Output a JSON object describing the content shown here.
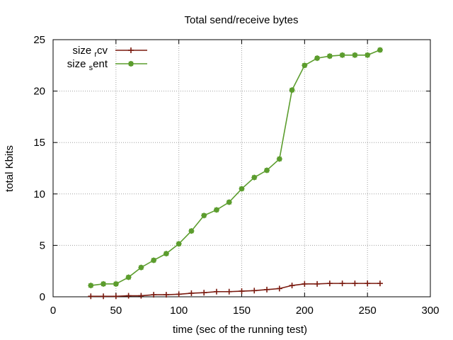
{
  "chart_data": {
    "type": "line",
    "title": "Total send/receive bytes",
    "xlabel": "time (sec of the running test)",
    "ylabel": "total Kbits",
    "xlim": [
      0,
      300
    ],
    "ylim": [
      0,
      25
    ],
    "xticks": [
      0,
      50,
      100,
      150,
      200,
      250,
      300
    ],
    "yticks": [
      0,
      5,
      10,
      15,
      20,
      25
    ],
    "xtick_labels": [
      "0",
      "50",
      "100",
      "150",
      "200",
      "250",
      "300"
    ],
    "ytick_labels": [
      "0",
      "5",
      "10",
      "15",
      "20",
      "25"
    ],
    "grid": true,
    "legend_position": "top-left",
    "series": [
      {
        "legend_parts": [
          "size",
          "r",
          "cv"
        ],
        "color": "#7a1a0f",
        "marker": "plus",
        "x": [
          30,
          40,
          50,
          60,
          70,
          80,
          90,
          100,
          110,
          120,
          130,
          140,
          150,
          160,
          170,
          180,
          190,
          200,
          210,
          220,
          230,
          240,
          250,
          260
        ],
        "y": [
          0.05,
          0.05,
          0.05,
          0.1,
          0.1,
          0.2,
          0.2,
          0.25,
          0.35,
          0.4,
          0.5,
          0.5,
          0.55,
          0.6,
          0.7,
          0.8,
          1.1,
          1.25,
          1.25,
          1.3,
          1.3,
          1.3,
          1.3,
          1.3
        ]
      },
      {
        "legend_parts": [
          "size",
          "s",
          "ent"
        ],
        "color": "#5c9d2e",
        "marker": "star",
        "x": [
          30,
          40,
          50,
          60,
          70,
          80,
          90,
          100,
          110,
          120,
          130,
          140,
          150,
          160,
          170,
          180,
          190,
          200,
          210,
          220,
          230,
          240,
          250,
          260
        ],
        "y": [
          1.1,
          1.25,
          1.25,
          1.9,
          2.85,
          3.55,
          4.2,
          5.15,
          6.4,
          7.9,
          8.45,
          9.2,
          10.5,
          11.6,
          12.3,
          13.4,
          20.1,
          22.5,
          23.2,
          23.4,
          23.5,
          23.5,
          23.5,
          24.0
        ]
      }
    ]
  }
}
